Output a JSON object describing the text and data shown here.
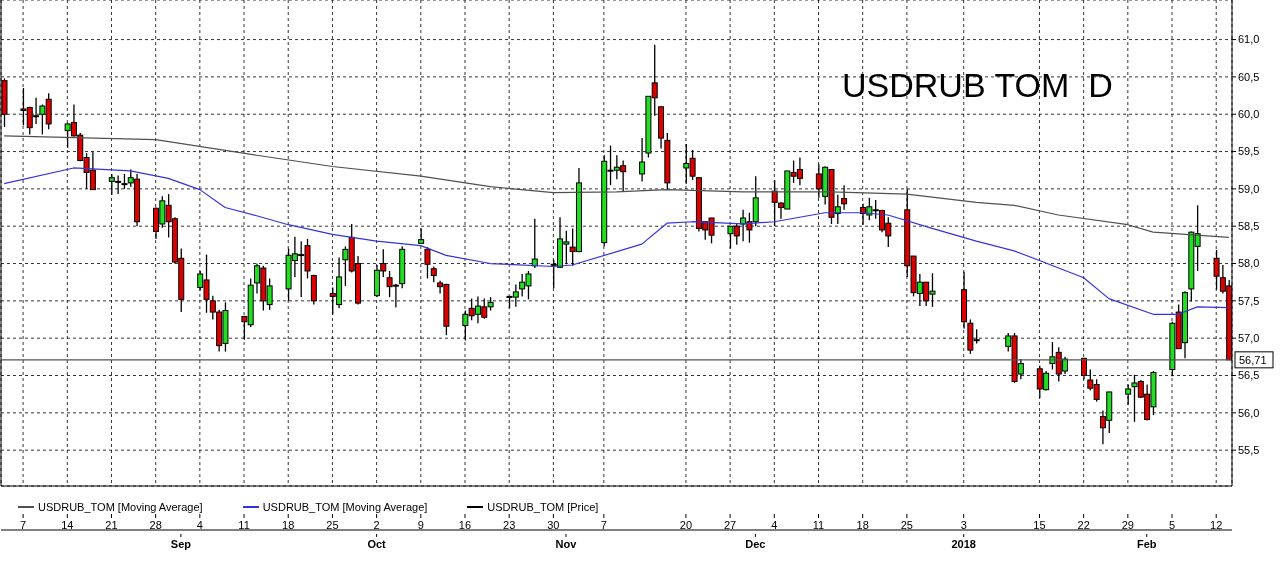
{
  "chart_data": {
    "type": "candlestick",
    "title": "USDRUB TOM  D",
    "x": [
      "2017-08-04",
      "2017-08-07",
      "2017-08-08",
      "2017-08-09",
      "2017-08-10",
      "2017-08-11",
      "2017-08-14",
      "2017-08-15",
      "2017-08-16",
      "2017-08-17",
      "2017-08-18",
      "2017-08-21",
      "2017-08-22",
      "2017-08-23",
      "2017-08-24",
      "2017-08-25",
      "2017-08-28",
      "2017-08-29",
      "2017-08-30",
      "2017-08-31",
      "2017-09-01",
      "2017-09-04",
      "2017-09-05",
      "2017-09-06",
      "2017-09-07",
      "2017-09-08",
      "2017-09-11",
      "2017-09-12",
      "2017-09-13",
      "2017-09-14",
      "2017-09-15",
      "2017-09-18",
      "2017-09-19",
      "2017-09-20",
      "2017-09-21",
      "2017-09-22",
      "2017-09-25",
      "2017-09-26",
      "2017-09-27",
      "2017-09-28",
      "2017-09-29",
      "2017-10-02",
      "2017-10-03",
      "2017-10-04",
      "2017-10-05",
      "2017-10-06",
      "2017-10-09",
      "2017-10-10",
      "2017-10-11",
      "2017-10-12",
      "2017-10-13",
      "2017-10-16",
      "2017-10-17",
      "2017-10-18",
      "2017-10-19",
      "2017-10-20",
      "2017-10-23",
      "2017-10-24",
      "2017-10-25",
      "2017-10-26",
      "2017-10-27",
      "2017-10-30",
      "2017-10-31",
      "2017-11-01",
      "2017-11-02",
      "2017-11-03",
      "2017-11-07",
      "2017-11-08",
      "2017-11-09",
      "2017-11-10",
      "2017-11-13",
      "2017-11-14",
      "2017-11-15",
      "2017-11-16",
      "2017-11-17",
      "2017-11-20",
      "2017-11-21",
      "2017-11-22",
      "2017-11-23",
      "2017-11-24",
      "2017-11-27",
      "2017-11-28",
      "2017-11-29",
      "2017-11-30",
      "2017-12-01",
      "2017-12-04",
      "2017-12-05",
      "2017-12-06",
      "2017-12-07",
      "2017-12-08",
      "2017-12-11",
      "2017-12-12",
      "2017-12-13",
      "2017-12-14",
      "2017-12-15",
      "2017-12-18",
      "2017-12-19",
      "2017-12-20",
      "2017-12-21",
      "2017-12-22",
      "2017-12-25",
      "2017-12-26",
      "2017-12-27",
      "2017-12-28",
      "2017-12-29",
      "2018-01-03",
      "2018-01-04",
      "2018-01-05",
      "2018-01-10",
      "2018-01-11",
      "2018-01-12",
      "2018-01-15",
      "2018-01-16",
      "2018-01-17",
      "2018-01-18",
      "2018-01-19",
      "2018-01-22",
      "2018-01-23",
      "2018-01-24",
      "2018-01-25",
      "2018-01-26",
      "2018-01-29",
      "2018-01-30",
      "2018-01-31",
      "2018-02-01",
      "2018-02-02",
      "2018-02-05",
      "2018-02-06",
      "2018-02-07",
      "2018-02-08",
      "2018-02-09",
      "2018-02-12",
      "2018-02-13",
      "2018-02-14"
    ],
    "series": [
      {
        "type": "candlestick",
        "name": "USDRUB_TOM [Price]",
        "color": "#000000",
        "ohlc": [
          [
            60.45,
            60.48,
            59.83,
            60.0
          ],
          [
            60.07,
            60.35,
            59.85,
            60.05
          ],
          [
            60.09,
            60.1,
            59.73,
            59.82
          ],
          [
            59.98,
            60.22,
            59.87,
            59.97
          ],
          [
            60.0,
            60.13,
            59.73,
            60.11
          ],
          [
            60.2,
            60.28,
            59.8,
            59.87
          ],
          [
            59.78,
            59.88,
            59.55,
            59.87
          ],
          [
            59.89,
            60.13,
            59.7,
            59.71
          ],
          [
            59.72,
            59.75,
            59.37,
            59.38
          ],
          [
            59.42,
            59.48,
            59.0,
            59.22
          ],
          [
            59.25,
            59.5,
            58.99,
            58.99
          ],
          [
            59.1,
            59.2,
            58.92,
            59.15
          ],
          [
            59.1,
            59.18,
            58.93,
            59.1
          ],
          [
            59.07,
            59.2,
            59.0,
            59.07
          ],
          [
            59.08,
            59.26,
            59.03,
            59.15
          ],
          [
            59.13,
            59.2,
            58.5,
            58.56
          ],
          [
            58.74,
            58.75,
            58.33,
            58.43
          ],
          [
            58.53,
            58.9,
            58.48,
            58.84
          ],
          [
            58.78,
            58.93,
            58.35,
            58.56
          ],
          [
            58.6,
            58.62,
            58.0,
            58.02
          ],
          [
            58.07,
            58.2,
            57.35,
            57.52
          ],
          [
            57.68,
            57.9,
            57.64,
            57.86
          ],
          [
            57.78,
            58.12,
            57.34,
            57.52
          ],
          [
            57.5,
            57.57,
            57.25,
            57.35
          ],
          [
            57.35,
            57.38,
            56.82,
            56.9
          ],
          [
            56.93,
            57.48,
            56.82,
            57.37
          ],
          [
            57.29,
            57.3,
            56.98,
            57.22
          ],
          [
            57.18,
            57.8,
            57.15,
            57.71
          ],
          [
            57.74,
            58.0,
            57.6,
            57.97
          ],
          [
            57.94,
            57.97,
            57.37,
            57.5
          ],
          [
            57.45,
            57.8,
            57.38,
            57.7
          ],
          [
            57.66,
            58.2,
            57.5,
            58.11
          ],
          [
            58.04,
            58.36,
            57.82,
            58.13
          ],
          [
            58.12,
            58.3,
            57.55,
            58.12
          ],
          [
            58.24,
            58.33,
            57.8,
            57.9
          ],
          [
            57.84,
            57.85,
            57.45,
            57.5
          ],
          [
            57.6,
            57.68,
            57.32,
            57.56
          ],
          [
            57.45,
            58.08,
            57.4,
            57.82
          ],
          [
            58.05,
            58.23,
            57.7,
            58.19
          ],
          [
            58.35,
            58.53,
            57.88,
            57.9
          ],
          [
            58.0,
            58.1,
            57.45,
            57.47
          ],
          [
            57.57,
            57.98,
            57.55,
            57.91
          ],
          [
            58.0,
            58.19,
            57.82,
            57.9
          ],
          [
            57.81,
            57.9,
            57.55,
            57.69
          ],
          [
            57.71,
            57.73,
            57.41,
            57.71
          ],
          [
            57.73,
            58.23,
            57.67,
            58.19
          ],
          [
            58.27,
            58.47,
            58.27,
            58.32
          ],
          [
            58.19,
            58.22,
            57.8,
            57.99
          ],
          [
            57.93,
            57.96,
            57.75,
            57.84
          ],
          [
            57.74,
            57.77,
            57.6,
            57.69
          ],
          [
            57.72,
            57.73,
            57.04,
            57.16
          ],
          [
            57.17,
            57.37,
            56.97,
            57.32
          ],
          [
            57.4,
            57.53,
            57.24,
            57.3
          ],
          [
            57.32,
            57.56,
            57.2,
            57.43
          ],
          [
            57.42,
            57.53,
            57.26,
            57.28
          ],
          [
            57.42,
            57.55,
            57.37,
            57.48
          ],
          [
            57.56,
            57.56,
            57.4,
            57.56
          ],
          [
            57.55,
            57.72,
            57.42,
            57.62
          ],
          [
            57.66,
            57.86,
            57.56,
            57.75
          ],
          [
            57.7,
            57.9,
            57.52,
            57.86
          ],
          [
            57.97,
            58.6,
            57.94,
            58.06
          ],
          [
            57.99,
            58.05,
            57.67,
            57.99
          ],
          [
            57.95,
            58.62,
            57.94,
            58.33
          ],
          [
            58.26,
            58.44,
            57.99,
            58.29
          ],
          [
            58.22,
            58.47,
            57.97,
            58.16
          ],
          [
            58.16,
            59.28,
            58.15,
            59.08
          ],
          [
            58.28,
            59.45,
            58.23,
            59.37
          ],
          [
            59.25,
            59.58,
            59.05,
            59.25
          ],
          [
            59.25,
            59.45,
            59.13,
            59.29
          ],
          [
            59.31,
            59.38,
            58.96,
            59.23
          ],
          [
            59.2,
            59.68,
            59.1,
            59.36
          ],
          [
            59.48,
            60.24,
            59.42,
            60.24
          ],
          [
            60.42,
            60.93,
            59.98,
            60.22
          ],
          [
            60.1,
            60.1,
            59.54,
            59.68
          ],
          [
            59.65,
            59.75,
            59.0,
            59.08
          ],
          [
            59.28,
            59.6,
            59.07,
            59.34
          ],
          [
            59.41,
            59.52,
            59.12,
            59.17
          ],
          [
            59.15,
            59.15,
            58.43,
            58.47
          ],
          [
            58.56,
            58.56,
            58.32,
            58.45
          ],
          [
            58.61,
            58.61,
            58.27,
            58.38
          ],
          [
            58.4,
            58.5,
            58.2,
            58.5
          ],
          [
            58.5,
            58.54,
            58.25,
            58.37
          ],
          [
            58.53,
            58.72,
            58.3,
            58.61
          ],
          [
            58.56,
            58.68,
            58.28,
            58.45
          ],
          [
            58.56,
            59.17,
            58.5,
            58.88
          ],
          [
            58.97,
            59.12,
            58.5,
            58.82
          ],
          [
            58.81,
            58.82,
            58.6,
            58.75
          ],
          [
            58.73,
            59.24,
            58.73,
            59.24
          ],
          [
            59.22,
            59.38,
            59.08,
            59.17
          ],
          [
            59.26,
            59.42,
            59.05,
            59.14
          ],
          [
            59.2,
            59.33,
            58.88,
            59.0
          ],
          [
            58.9,
            59.3,
            58.79,
            59.29
          ],
          [
            59.26,
            59.26,
            58.53,
            58.62
          ],
          [
            58.67,
            58.92,
            58.53,
            58.76
          ],
          [
            58.87,
            59.05,
            58.72,
            58.8
          ],
          [
            58.75,
            58.8,
            58.52,
            58.67
          ],
          [
            58.65,
            58.88,
            58.58,
            58.76
          ],
          [
            58.72,
            58.85,
            58.6,
            58.72
          ],
          [
            58.71,
            58.72,
            58.42,
            58.45
          ],
          [
            58.54,
            58.62,
            58.22,
            58.37
          ],
          [
            58.72,
            59.0,
            57.82,
            57.97
          ],
          [
            58.1,
            58.1,
            57.56,
            57.61
          ],
          [
            57.6,
            57.86,
            57.43,
            57.75
          ],
          [
            57.75,
            57.75,
            57.43,
            57.5
          ],
          [
            57.59,
            57.87,
            57.42,
            57.63
          ],
          [
            57.65,
            57.89,
            57.13,
            57.22
          ],
          [
            57.2,
            57.25,
            56.79,
            56.84
          ],
          [
            56.98,
            57.12,
            56.93,
            56.98
          ],
          [
            56.89,
            57.07,
            56.82,
            57.03
          ],
          [
            57.03,
            57.07,
            56.4,
            56.42
          ],
          [
            56.52,
            56.72,
            56.45,
            56.66
          ],
          [
            56.59,
            56.63,
            56.2,
            56.32
          ],
          [
            56.31,
            56.56,
            56.3,
            56.53
          ],
          [
            56.66,
            56.95,
            56.58,
            56.75
          ],
          [
            56.81,
            56.88,
            56.42,
            56.52
          ],
          [
            56.56,
            56.75,
            56.52,
            56.72
          ],
          [
            56.73,
            56.73,
            56.45,
            56.5
          ],
          [
            56.44,
            56.58,
            56.3,
            56.33
          ],
          [
            56.38,
            56.45,
            56.15,
            56.18
          ],
          [
            55.95,
            56.03,
            55.58,
            55.8
          ],
          [
            55.9,
            56.28,
            55.73,
            56.28
          ],
          [
            56.25,
            56.38,
            56.11,
            56.32
          ],
          [
            56.35,
            56.51,
            55.88,
            56.4
          ],
          [
            56.42,
            56.44,
            56.2,
            56.21
          ],
          [
            56.25,
            56.38,
            55.9,
            55.91
          ],
          [
            56.08,
            56.56,
            55.97,
            56.54
          ],
          [
            56.58,
            57.22,
            56.49,
            57.2
          ],
          [
            57.35,
            57.45,
            56.86,
            56.86
          ],
          [
            56.94,
            57.63,
            56.73,
            57.61
          ],
          [
            57.66,
            58.43,
            57.49,
            58.42
          ],
          [
            58.23,
            58.78,
            57.9,
            58.4
          ],
          [
            58.07,
            58.18,
            57.65,
            57.83
          ],
          [
            57.81,
            57.98,
            57.6,
            57.63
          ],
          [
            57.7,
            57.78,
            56.71,
            56.71
          ]
        ],
        "colors": [
          "#dd0000",
          "#dd0000",
          "#dd0000",
          "#dd0000",
          "#22dd22",
          "#dd0000",
          "#22dd22",
          "#dd0000",
          "#dd0000",
          "#dd0000",
          "#dd0000",
          "#22dd22",
          "#22dd22",
          "#22dd22",
          "#22dd22",
          "#dd0000",
          "#dd0000",
          "#22dd22",
          "#dd0000",
          "#dd0000",
          "#dd0000",
          "#22dd22",
          "#dd0000",
          "#dd0000",
          "#dd0000",
          "#22dd22",
          "#dd0000",
          "#22dd22",
          "#22dd22",
          "#dd0000",
          "#22dd22",
          "#22dd22",
          "#22dd22",
          "#22dd22",
          "#dd0000",
          "#dd0000",
          "#dd0000",
          "#22dd22",
          "#22dd22",
          "#dd0000",
          "#dd0000",
          "#22dd22",
          "#dd0000",
          "#dd0000",
          "#22dd22",
          "#22dd22",
          "#22dd22",
          "#dd0000",
          "#dd0000",
          "#dd0000",
          "#dd0000",
          "#22dd22",
          "#dd0000",
          "#22dd22",
          "#dd0000",
          "#22dd22",
          "#22dd22",
          "#22dd22",
          "#22dd22",
          "#22dd22",
          "#22dd22",
          "#22dd22",
          "#22dd22",
          "#22dd22",
          "#dd0000",
          "#22dd22",
          "#22dd22",
          "#22dd22",
          "#22dd22",
          "#dd0000",
          "#22dd22",
          "#22dd22",
          "#dd0000",
          "#dd0000",
          "#dd0000",
          "#22dd22",
          "#dd0000",
          "#dd0000",
          "#dd0000",
          "#dd0000",
          "#22dd22",
          "#dd0000",
          "#22dd22",
          "#dd0000",
          "#22dd22",
          "#dd0000",
          "#dd0000",
          "#22dd22",
          "#dd0000",
          "#dd0000",
          "#dd0000",
          "#22dd22",
          "#dd0000",
          "#22dd22",
          "#dd0000",
          "#dd0000",
          "#22dd22",
          "#22dd22",
          "#dd0000",
          "#dd0000",
          "#dd0000",
          "#dd0000",
          "#22dd22",
          "#dd0000",
          "#22dd22",
          "#dd0000",
          "#dd0000",
          "#22dd22",
          "#22dd22",
          "#dd0000",
          "#22dd22",
          "#dd0000",
          "#22dd22",
          "#22dd22",
          "#dd0000",
          "#22dd22",
          "#dd0000",
          "#dd0000",
          "#dd0000",
          "#dd0000",
          "#22dd22",
          "#22dd22",
          "#22dd22",
          "#dd0000",
          "#dd0000",
          "#22dd22",
          "#22dd22",
          "#dd0000",
          "#22dd22",
          "#22dd22",
          "#22dd22",
          "#dd0000",
          "#dd0000",
          "#dd0000"
        ]
      },
      {
        "type": "line",
        "name": "USDRUB_TOM [Moving Average]",
        "color": "#505050",
        "x": [
          "2017-08-04",
          "2017-08-28",
          "2017-09-13",
          "2017-09-25",
          "2017-10-09",
          "2017-10-20",
          "2017-10-30",
          "2017-11-09",
          "2017-11-17",
          "2017-11-29",
          "2017-12-13",
          "2017-12-25",
          "2018-01-05",
          "2018-01-11",
          "2018-01-18",
          "2018-01-29",
          "2018-02-02",
          "2018-02-14"
        ],
        "values": [
          59.71,
          59.66,
          59.45,
          59.3,
          59.17,
          59.03,
          58.95,
          58.96,
          58.99,
          58.96,
          58.96,
          58.93,
          58.82,
          58.78,
          58.65,
          58.52,
          58.42,
          58.35
        ]
      },
      {
        "type": "line",
        "name": "USDRUB_TOM [Moving Average]",
        "color": "#3333dd",
        "x": [
          "2017-08-04",
          "2017-08-15",
          "2017-08-24",
          "2017-08-30",
          "2017-09-04",
          "2017-09-08",
          "2017-09-13",
          "2017-09-18",
          "2017-09-25",
          "2017-10-02",
          "2017-10-09",
          "2017-10-13",
          "2017-10-20",
          "2017-10-30",
          "2017-11-02",
          "2017-11-13",
          "2017-11-17",
          "2017-11-21",
          "2017-11-29",
          "2017-12-04",
          "2017-12-12",
          "2017-12-18",
          "2017-12-22",
          "2017-12-29",
          "2018-01-05",
          "2018-01-11",
          "2018-01-15",
          "2018-01-22",
          "2018-01-26",
          "2018-02-02",
          "2018-02-06",
          "2018-02-09",
          "2018-02-14"
        ],
        "values": [
          59.07,
          59.28,
          59.24,
          59.14,
          58.99,
          58.75,
          58.64,
          58.52,
          58.39,
          58.3,
          58.24,
          58.11,
          58.0,
          57.96,
          57.98,
          58.26,
          58.54,
          58.56,
          58.53,
          58.56,
          58.68,
          58.68,
          58.65,
          58.47,
          58.3,
          58.17,
          58.04,
          57.81,
          57.53,
          57.32,
          57.32,
          57.42,
          57.41
        ]
      }
    ],
    "xlim": [
      "2017-08-04",
      "2018-02-14"
    ],
    "xticks": [
      {
        "value": "2017-08-07",
        "label": "7"
      },
      {
        "value": "2017-08-14",
        "label": "14"
      },
      {
        "value": "2017-08-21",
        "label": "21"
      },
      {
        "value": "2017-08-28",
        "label": "28"
      },
      {
        "value": "2017-09-04",
        "label": "4"
      },
      {
        "value": "2017-09-11",
        "label": "11"
      },
      {
        "value": "2017-09-18",
        "label": "18"
      },
      {
        "value": "2017-09-25",
        "label": "25"
      },
      {
        "value": "2017-10-02",
        "label": "2"
      },
      {
        "value": "2017-10-09",
        "label": "9"
      },
      {
        "value": "2017-10-16",
        "label": "16"
      },
      {
        "value": "2017-10-23",
        "label": "23"
      },
      {
        "value": "2017-10-30",
        "label": "30"
      },
      {
        "value": "2017-11-07",
        "label": "7"
      },
      {
        "value": "2017-11-20",
        "label": "20"
      },
      {
        "value": "2017-11-27",
        "label": "27"
      },
      {
        "value": "2017-12-04",
        "label": "4"
      },
      {
        "value": "2017-12-11",
        "label": "11"
      },
      {
        "value": "2017-12-18",
        "label": "18"
      },
      {
        "value": "2017-12-25",
        "label": "25"
      },
      {
        "value": "2018-01-03",
        "label": "3"
      },
      {
        "value": "2018-01-15",
        "label": "15"
      },
      {
        "value": "2018-01-22",
        "label": "22"
      },
      {
        "value": "2018-01-29",
        "label": "29"
      },
      {
        "value": "2018-02-05",
        "label": "5"
      },
      {
        "value": "2018-02-12",
        "label": "12"
      }
    ],
    "x2lim": [
      "2017-08-04",
      "2018-02-14"
    ],
    "x2ticks": [
      {
        "value": "2017-09-01",
        "label": "Sep"
      },
      {
        "value": "2017-10-02",
        "label": "Oct"
      },
      {
        "value": "2017-11-01",
        "label": "Nov"
      },
      {
        "value": "2017-12-01",
        "label": "Dec"
      },
      {
        "value": "2018-01-03",
        "label": "2018"
      },
      {
        "value": "2018-02-01",
        "label": "Feb"
      }
    ],
    "ylim": [
      55.02,
      61.53
    ],
    "yticks": [
      {
        "value": 55.5,
        "label": "55,5"
      },
      {
        "value": 56,
        "label": "56,0"
      },
      {
        "value": 56.5,
        "label": "56,5"
      },
      {
        "value": 57,
        "label": "57,0"
      },
      {
        "value": 57.5,
        "label": "57,5"
      },
      {
        "value": 58,
        "label": "58,0"
      },
      {
        "value": 58.5,
        "label": "58,5"
      },
      {
        "value": 59,
        "label": "59,0"
      },
      {
        "value": 59.5,
        "label": "59,5"
      },
      {
        "value": 60,
        "label": "60,0"
      },
      {
        "value": 60.5,
        "label": "60,5"
      },
      {
        "value": 61,
        "label": "61,0"
      }
    ],
    "ref_lines": [
      {
        "axis": "y",
        "value": 56.71,
        "label": "56,71",
        "color": "#555555"
      }
    ],
    "grid": true,
    "legend": "bottom"
  }
}
